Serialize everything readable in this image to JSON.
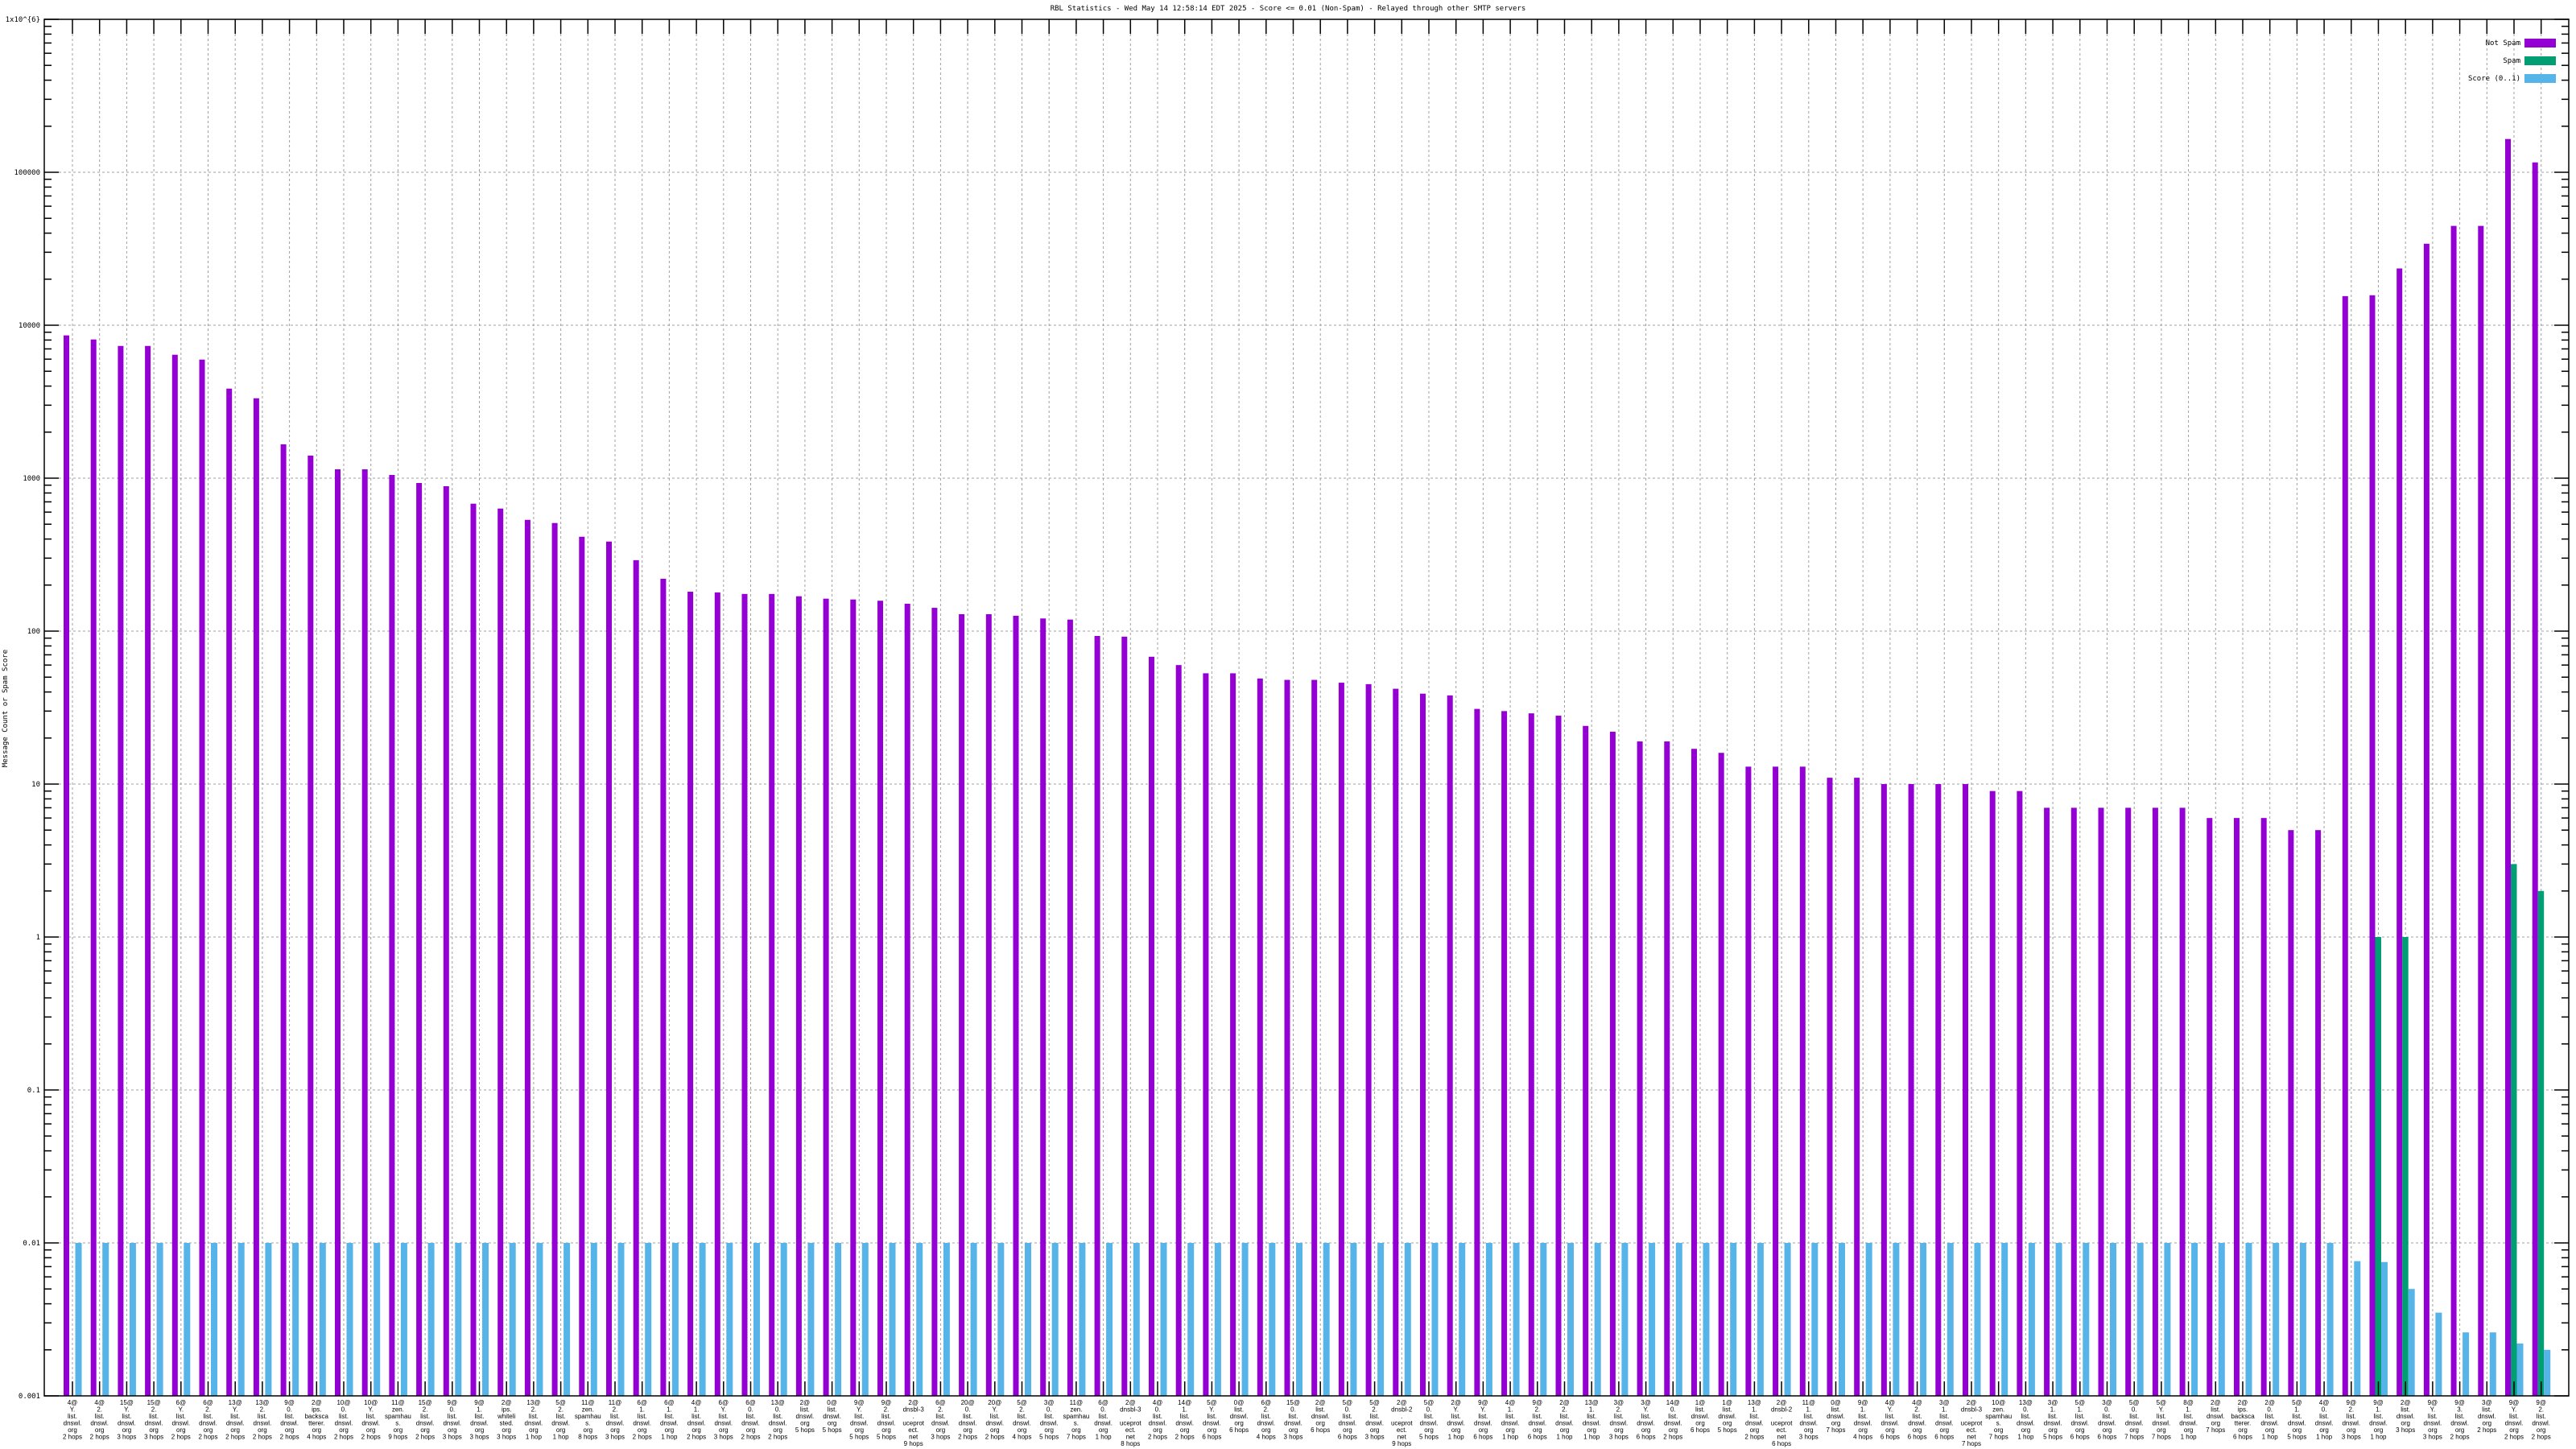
{
  "chart_data": {
    "type": "bar",
    "title": "RBL Statistics - Wed May 14 12:58:14 EDT 2025 - Score <= 0.01 (Non-Spam) - Relayed through other SMTP servers",
    "xlabel": "",
    "ylabel": "Message Count or Spam Score",
    "yscale": "log",
    "ylim": [
      0.001,
      1000000
    ],
    "ytick_labels": [
      "1x10^{6}",
      "100000",
      "10000",
      "1000",
      "100",
      "10",
      "1",
      "0.1",
      "0.01",
      "0.001"
    ],
    "grid": true,
    "legend_position": "top-right",
    "colors": {
      "Not Spam": "#9400d3",
      "Spam": "#009e73",
      "Score (0..1)": "#56b4e9"
    },
    "categories": [
      "4@Y.list.dnswl.org 2 hops",
      "4@2.list.dnswl.org 2 hops",
      "15@Y.list.dnswl.org 3 hops",
      "15@2.list.dnswl.org 3 hops",
      "6@Y.list.dnswl.org 2 hops",
      "6@2.list.dnswl.org 2 hops",
      "13@Y.list.dnswl.org 2 hops",
      "13@2.list.dnswl.org 2 hops",
      "9@0.list.dnswl.org 2 hops",
      "2@ips.backscatterer.org 4 hops",
      "10@0.list.dnswl.org 2 hops",
      "10@Y.list.dnswl.org 2 hops",
      "11@zen.spamhaus.org 9 hops",
      "15@2.list.dnswl.org 2 hops",
      "9@0.list.dnswl.org 3 hops",
      "9@1.list.dnswl.org 3 hops",
      "2@ips.whitelisted.org 3 hops",
      "13@2.list.dnswl.org 1 hop",
      "5@2.list.dnswl.org 1 hop",
      "11@zen.spamhaus.org 8 hops",
      "11@2.list.dnswl.org 3 hops",
      "6@1.list.dnswl.org 2 hops",
      "6@1.list.dnswl.org 1 hop",
      "4@1.list.dnswl.org 2 hops",
      "6@Y.list.dnswl.org 3 hops",
      "6@0.list.dnswl.org 2 hops",
      "13@0.list.dnswl.org 2 hops",
      "2@list.dnswl.org 5 hops",
      "0@list.dnswl.org 5 hops",
      "9@Y.list.dnswl.org 5 hops",
      "9@2.list.dnswl.org 5 hops",
      "2@dnsbl-3.uceprotect.net 9 hops",
      "6@2.list.dnswl.org 3 hops",
      "20@0.list.dnswl.org 2 hops",
      "20@Y.list.dnswl.org 2 hops",
      "5@2.list.dnswl.org 4 hops",
      "3@0.list.dnswl.org 5 hops",
      "11@zen.spamhaus.org 7 hops",
      "6@0.list.dnswl.org 1 hop",
      "2@dnsbl-3.uceprotect.net 8 hops",
      "4@0.list.dnswl.org 2 hops",
      "14@1.list.dnswl.org 2 hops",
      "5@Y.list.dnswl.org 6 hops",
      "0@list.dnswl.org 6 hops",
      "6@2.list.dnswl.org 4 hops",
      "15@0.list.dnswl.org 3 hops",
      "2@list.dnswl.org 6 hops",
      "5@0.list.dnswl.org 6 hops",
      "5@2.list.dnswl.org 3 hops",
      "2@dnsbl-2.uceprotect.net 9 hops",
      "5@0.list.dnswl.org 5 hops",
      "2@Y.list.dnswl.org 1 hop",
      "9@Y.list.dnswl.org 6 hops",
      "4@1.list.dnswl.org 1 hop",
      "9@2.list.dnswl.org 6 hops",
      "2@2.list.dnswl.org 1 hop",
      "13@1.list.dnswl.org 1 hop",
      "3@2.list.dnswl.org 3 hops",
      "3@Y.list.dnswl.org 6 hops",
      "14@0.list.dnswl.org 2 hops",
      "1@list.dnswl.org 6 hops",
      "1@list.dnswl.org 5 hops",
      "13@1.list.dnswl.org 2 hops",
      "2@dnsbl-2.uceprotect.net 6 hops",
      "11@1.list.dnswl.org 3 hops",
      "0@list.dnswl.org 7 hops",
      "9@1.list.dnswl.org 4 hops",
      "4@Y.list.dnswl.org 6 hops",
      "4@2.list.dnswl.org 6 hops",
      "3@1.list.dnswl.org 6 hops",
      "2@dnsbl-3.uceprotect.net 7 hops",
      "10@zen.spamhaus.org 7 hops",
      "13@0.list.dnswl.org 1 hop",
      "3@1.list.dnswl.org 5 hops",
      "5@1.list.dnswl.org 6 hops",
      "3@0.list.dnswl.org 6 hops",
      "5@0.list.dnswl.org 7 hops",
      "5@Y.list.dnswl.org 7 hops",
      "8@1.list.dnswl.org 1 hop",
      "2@list.dnswl.org 7 hops",
      "2@ips.backscatterer.org 6 hops",
      "2@0.list.dnswl.org 1 hop",
      "5@1.list.dnswl.org 5 hops",
      "4@0.list.dnswl.org 1 hop",
      "9@2.list.dnswl.org 3 hops",
      "9@1.list.dnswl.org 1 hop",
      "2@list.dnswl.org 3 hops",
      "9@Y.list.dnswl.org 3 hops",
      "9@3.list.dnswl.org 2 hops",
      "3@list.dnswl.org 2 hops",
      "9@Y.list.dnswl.org 2 hops",
      "9@2.list.dnswl.org 2 hops"
    ],
    "series": [
      {
        "name": "Not Spam",
        "values": [
          8580,
          8070,
          7320,
          7320,
          6410,
          5960,
          3850,
          3330,
          1665,
          1405,
          1143,
          1143,
          1050,
          930,
          886,
          681,
          633,
          534,
          509,
          414,
          385,
          291,
          220,
          181,
          179,
          175,
          175,
          169,
          163,
          161,
          158,
          151,
          142,
          129,
          129,
          126,
          121,
          119,
          93,
          92,
          68,
          60,
          53,
          53,
          49,
          48,
          48,
          46,
          45,
          42,
          39,
          38,
          31,
          30,
          29,
          28,
          24,
          22,
          19,
          19,
          17,
          16,
          13,
          13,
          13,
          11,
          11,
          10,
          10,
          10,
          10,
          9,
          9,
          7,
          7,
          7,
          7,
          7,
          7,
          6,
          6,
          6,
          5,
          5,
          15500,
          15700,
          23500,
          34100,
          44600,
          44600,
          165000,
          116000
        ]
      },
      {
        "name": "Spam",
        "values": [
          0,
          0,
          0,
          0,
          0,
          0,
          0,
          0,
          0,
          0,
          0,
          0,
          0,
          0,
          0,
          0,
          0,
          0,
          0,
          0,
          0,
          0,
          0,
          0,
          0,
          0,
          0,
          0,
          0,
          0,
          0,
          0,
          0,
          0,
          0,
          0,
          0,
          0,
          0,
          0,
          0,
          0,
          0,
          0,
          0,
          0,
          0,
          0,
          0,
          0,
          0,
          0,
          0,
          0,
          0,
          0,
          0,
          0,
          0,
          0,
          0,
          0,
          0,
          0,
          0,
          0,
          0,
          0,
          0,
          0,
          0,
          0,
          0,
          0,
          0,
          0,
          0,
          0,
          0,
          0,
          0,
          0,
          0,
          0,
          0,
          1,
          1,
          0,
          0,
          0,
          3,
          2
        ]
      },
      {
        "name": "Score (0..1)",
        "values": [
          0.01,
          0.01,
          0.01,
          0.01,
          0.01,
          0.01,
          0.01,
          0.01,
          0.01,
          0.01,
          0.01,
          0.01,
          0.01,
          0.01,
          0.01,
          0.01,
          0.01,
          0.01,
          0.01,
          0.01,
          0.01,
          0.01,
          0.01,
          0.01,
          0.01,
          0.01,
          0.01,
          0.01,
          0.01,
          0.01,
          0.01,
          0.01,
          0.01,
          0.01,
          0.01,
          0.01,
          0.01,
          0.01,
          0.01,
          0.01,
          0.01,
          0.01,
          0.01,
          0.01,
          0.01,
          0.01,
          0.01,
          0.01,
          0.01,
          0.01,
          0.01,
          0.01,
          0.01,
          0.01,
          0.01,
          0.01,
          0.01,
          0.01,
          0.01,
          0.01,
          0.01,
          0.01,
          0.01,
          0.01,
          0.01,
          0.01,
          0.01,
          0.01,
          0.01,
          0.01,
          0.01,
          0.01,
          0.01,
          0.01,
          0.01,
          0.01,
          0.01,
          0.01,
          0.01,
          0.01,
          0.01,
          0.01,
          0.01,
          0.01,
          0.0076,
          0.0075,
          0.005,
          0.0035,
          0.0026,
          0.0026,
          0.0022,
          0.002
        ]
      }
    ]
  }
}
